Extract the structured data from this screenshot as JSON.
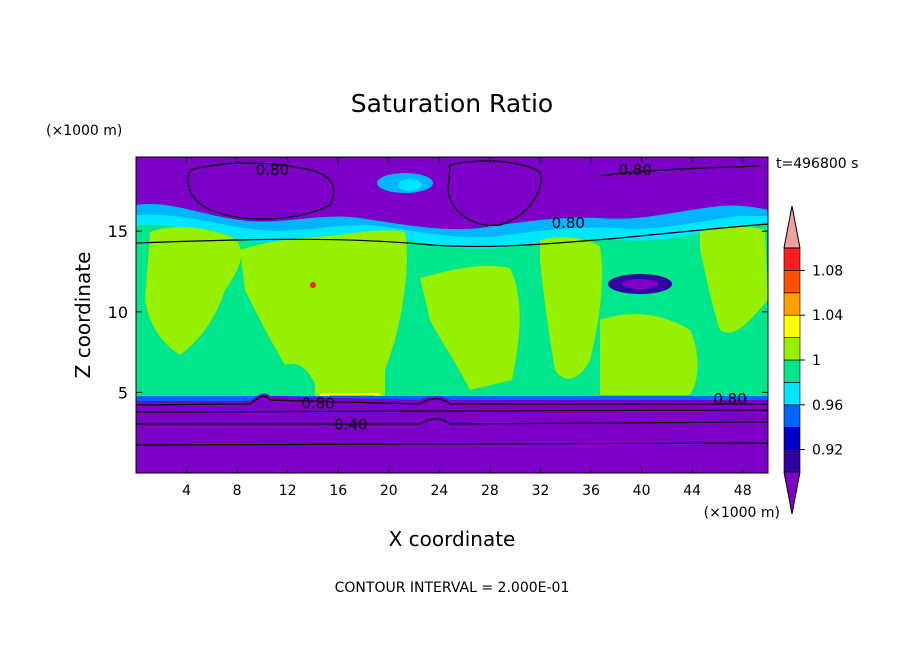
{
  "chart_data": {
    "type": "heatmap",
    "title": "Saturation Ratio",
    "xlabel": "X coordinate",
    "ylabel": "Z coordinate",
    "x_unit": "(×1000 m)",
    "y_unit": "(×1000 m)",
    "time_label": "t=496800 s",
    "footer": "CONTOUR INTERVAL = 2.000E-01",
    "xlim": [
      0,
      50
    ],
    "ylim": [
      0,
      19.6
    ],
    "x_ticks": [
      4,
      8,
      12,
      16,
      20,
      24,
      28,
      32,
      36,
      40,
      44,
      48
    ],
    "y_ticks": [
      5,
      10,
      15
    ],
    "colorbar": {
      "levels": [
        0.9,
        0.92,
        0.94,
        0.96,
        0.98,
        1.0,
        1.02,
        1.04,
        1.06,
        1.08,
        1.1
      ],
      "tick_labels": [
        "0.92",
        "0.96",
        "1",
        "1.04",
        "1.08"
      ],
      "tick_values": [
        0.92,
        0.96,
        1.0,
        1.04,
        1.08
      ],
      "colors": [
        "#7d00c8",
        "#3200a0",
        "#0000c8",
        "#0064ff",
        "#00e6ff",
        "#00e68c",
        "#96f000",
        "#ffff00",
        "#ffa000",
        "#ff5000",
        "#ff1e1e",
        "#f0a0a0"
      ]
    },
    "contour_labels": [
      {
        "text": "0.80",
        "x": 10.8,
        "z": 18.8
      },
      {
        "text": "0.80",
        "x": 39.5,
        "z": 18.8
      },
      {
        "text": "0.80",
        "x": 34.2,
        "z": 15.5
      },
      {
        "text": "0.80",
        "x": 14.4,
        "z": 4.3
      },
      {
        "text": "0.80",
        "x": 47.0,
        "z": 4.6
      },
      {
        "text": "0.40",
        "x": 17.0,
        "z": 3.0
      }
    ]
  }
}
